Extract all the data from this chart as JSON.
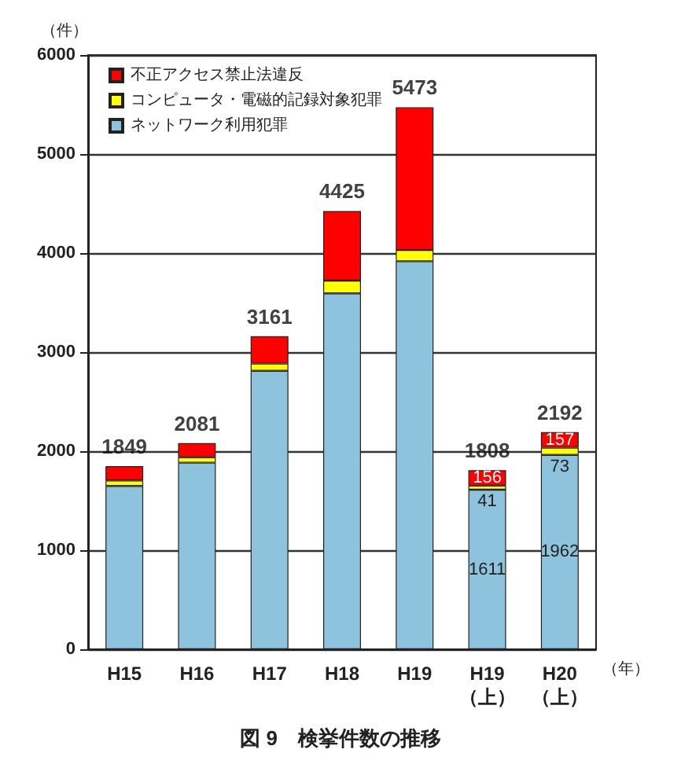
{
  "chart_data": {
    "type": "bar",
    "title": "図 9　検挙件数の推移",
    "ylabel": "（件）",
    "xlabel": "（年）",
    "categories": [
      "H15",
      "H16",
      "H17",
      "H18",
      "H19",
      "H19\n（上）",
      "H20\n（上）"
    ],
    "stacked": true,
    "series": [
      {
        "name": "ネットワーク利用犯罪",
        "color": "#8ec3de",
        "values": [
          1649,
          1884,
          2811,
          3593,
          3918,
          1611,
          1962
        ],
        "value_labels": [
          null,
          null,
          null,
          null,
          null,
          "1611",
          "1962"
        ]
      },
      {
        "name": "コンピュータ・電磁的記録対象犯罪",
        "color": "#ffff00",
        "values": [
          55,
          55,
          73,
          129,
          113,
          41,
          73
        ],
        "value_labels": [
          null,
          null,
          null,
          null,
          null,
          "41",
          "73"
        ]
      },
      {
        "name": "不正アクセス禁止法違反",
        "color": "#ff0000",
        "values": [
          145,
          142,
          277,
          703,
          1442,
          156,
          157
        ],
        "value_labels": [
          null,
          null,
          null,
          null,
          null,
          "156",
          "157"
        ]
      }
    ],
    "totals": [
      "1849",
      "2081",
      "3161",
      "4425",
      "5473",
      "1808",
      "2192"
    ],
    "ylim": [
      0,
      6000
    ],
    "yticks": [
      0,
      1000,
      2000,
      3000,
      4000,
      5000,
      6000
    ],
    "grid": "y",
    "legend": "top left"
  }
}
